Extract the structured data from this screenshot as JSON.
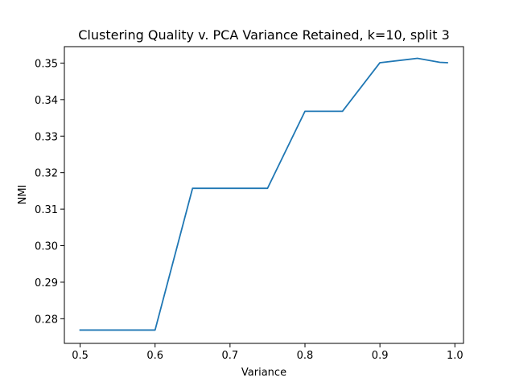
{
  "chart_data": {
    "type": "line",
    "title": "Clustering Quality v. PCA Variance Retained, k=10, split 3",
    "xlabel": "Variance",
    "ylabel": "NMI",
    "xlim": [
      0.479,
      1.0115
    ],
    "ylim": [
      0.27325,
      0.3545
    ],
    "xticks": [
      0.5,
      0.6,
      0.7,
      0.8,
      0.9,
      1.0
    ],
    "xtick_labels": [
      "0.5",
      "0.6",
      "0.7",
      "0.8",
      "0.9",
      "1.0"
    ],
    "yticks": [
      0.28,
      0.29,
      0.3,
      0.31,
      0.32,
      0.33,
      0.34,
      0.35
    ],
    "ytick_labels": [
      "0.28",
      "0.29",
      "0.30",
      "0.31",
      "0.32",
      "0.33",
      "0.34",
      "0.35"
    ],
    "grid": false,
    "series": [
      {
        "name": "NMI",
        "color": "#1f77b4",
        "x": [
          0.5,
          0.55,
          0.6,
          0.65,
          0.7,
          0.75,
          0.8,
          0.85,
          0.9,
          0.95,
          0.98,
          0.99
        ],
        "y": [
          0.2769,
          0.2769,
          0.2769,
          0.3157,
          0.3157,
          0.3157,
          0.3368,
          0.3368,
          0.3501,
          0.3513,
          0.3502,
          0.3501
        ]
      }
    ]
  }
}
